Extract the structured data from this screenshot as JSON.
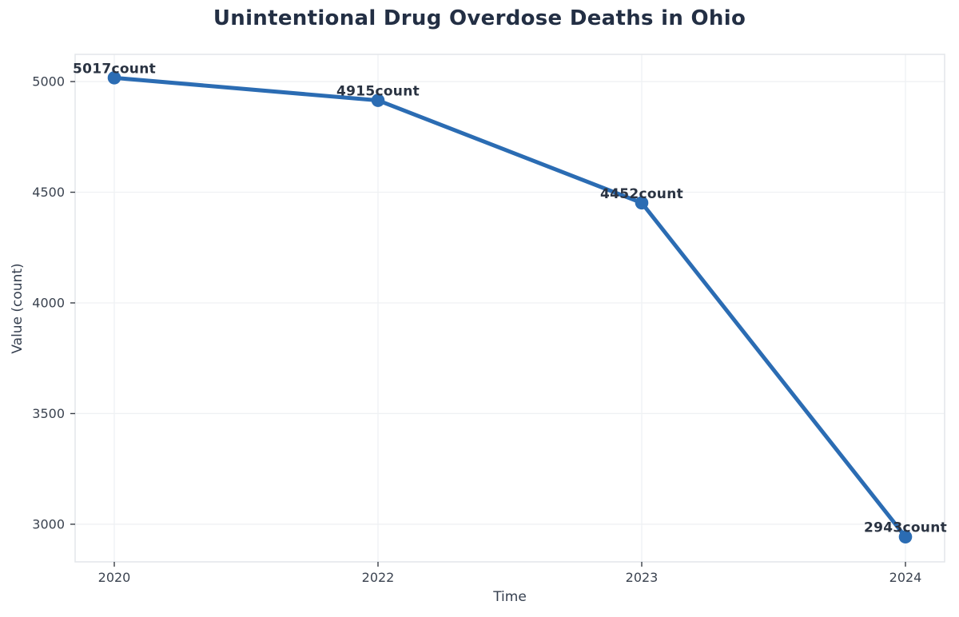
{
  "figure_title": "Unintentional Drug Overdose Deaths in Ohio",
  "chart_data": {
    "type": "line",
    "title": "Unintentional Drug Overdose Deaths in Ohio",
    "xlabel": "Time",
    "ylabel": "Value (count)",
    "categories": [
      "2020",
      "2022",
      "2023",
      "2024"
    ],
    "series": [
      {
        "name": "count",
        "values": [
          5017,
          4915,
          4452,
          2943
        ],
        "point_labels": [
          "5017count",
          "4915count",
          "4452count",
          "2943count"
        ]
      }
    ],
    "y_ticks": [
      3000,
      3500,
      4000,
      4500,
      5000
    ],
    "ylim": [
      2830,
      5123
    ],
    "grid": true,
    "legend_position": "none",
    "colors": {
      "line": "#2b6cb3",
      "marker": "#2b6cb3",
      "grid": "#eff1f3",
      "border": "#e3e6ea",
      "tick_mark": "#3a3f47",
      "tick_text": "#3b4350",
      "point_label_text": "#2a3342",
      "title_text": "#232f44",
      "background": "#ffffff"
    }
  }
}
